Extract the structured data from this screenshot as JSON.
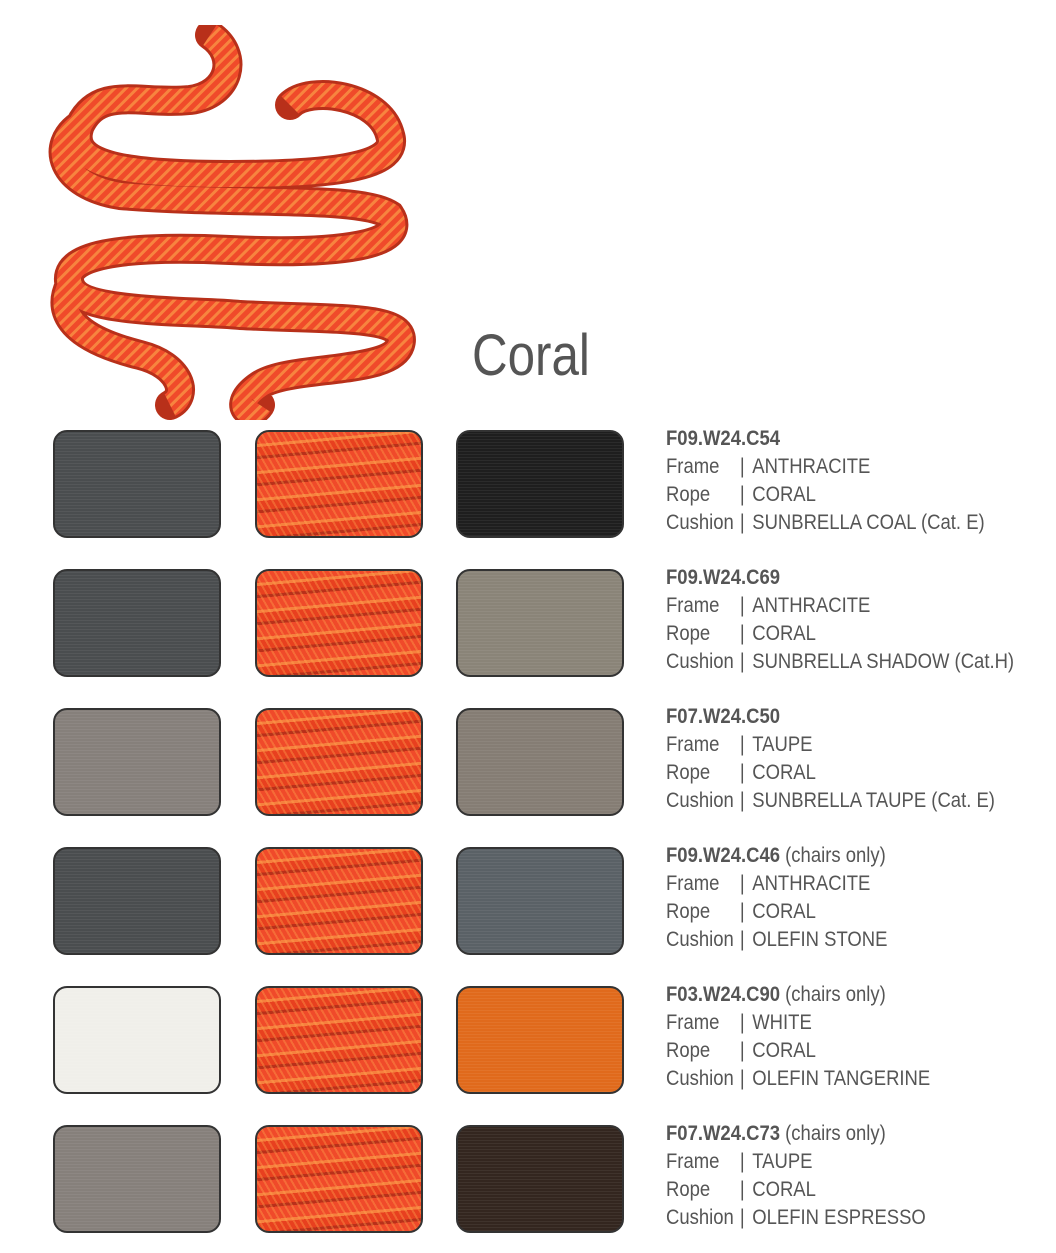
{
  "title": "Coral",
  "colors": {
    "coral": "#f04a2a",
    "text": "#555555"
  },
  "labels": {
    "frame": "Frame",
    "rope": "Rope",
    "cushion": "Cushion",
    "separator": "|"
  },
  "combinations": [
    {
      "code": "F09.W24.C54",
      "note": "",
      "frame": "ANTHRACITE",
      "rope": "CORAL",
      "cushion": "SUNBRELLA COAL (Cat. E)",
      "frame_color": "#4a4d4f",
      "cushion_color": "#1e1e1e"
    },
    {
      "code": "F09.W24.C69",
      "note": "",
      "frame": "ANTHRACITE",
      "rope": "CORAL",
      "cushion": "SUNBRELLA SHADOW (Cat.H)",
      "frame_color": "#4a4d4f",
      "cushion_color": "#8a8478"
    },
    {
      "code": "F07.W24.C50",
      "note": "",
      "frame": "TAUPE",
      "rope": "CORAL",
      "cushion": "SUNBRELLA TAUPE (Cat. E)",
      "frame_color": "#86807b",
      "cushion_color": "#857d74"
    },
    {
      "code": "F09.W24.C46",
      "note": "(chairs only)",
      "frame": "ANTHRACITE",
      "rope": "CORAL",
      "cushion": "OLEFIN STONE",
      "frame_color": "#4a4d4f",
      "cushion_color": "#5a6166"
    },
    {
      "code": "F03.W24.C90",
      "note": "(chairs only)",
      "frame": "WHITE",
      "rope": "CORAL",
      "cushion": "OLEFIN TANGERINE",
      "frame_color": "#f0efea",
      "cushion_color": "#e06a1c"
    },
    {
      "code": "F07.W24.C73",
      "note": "(chairs only)",
      "frame": "TAUPE",
      "rope": "CORAL",
      "cushion": "OLEFIN ESPRESSO",
      "frame_color": "#86807b",
      "cushion_color": "#33261f"
    }
  ]
}
